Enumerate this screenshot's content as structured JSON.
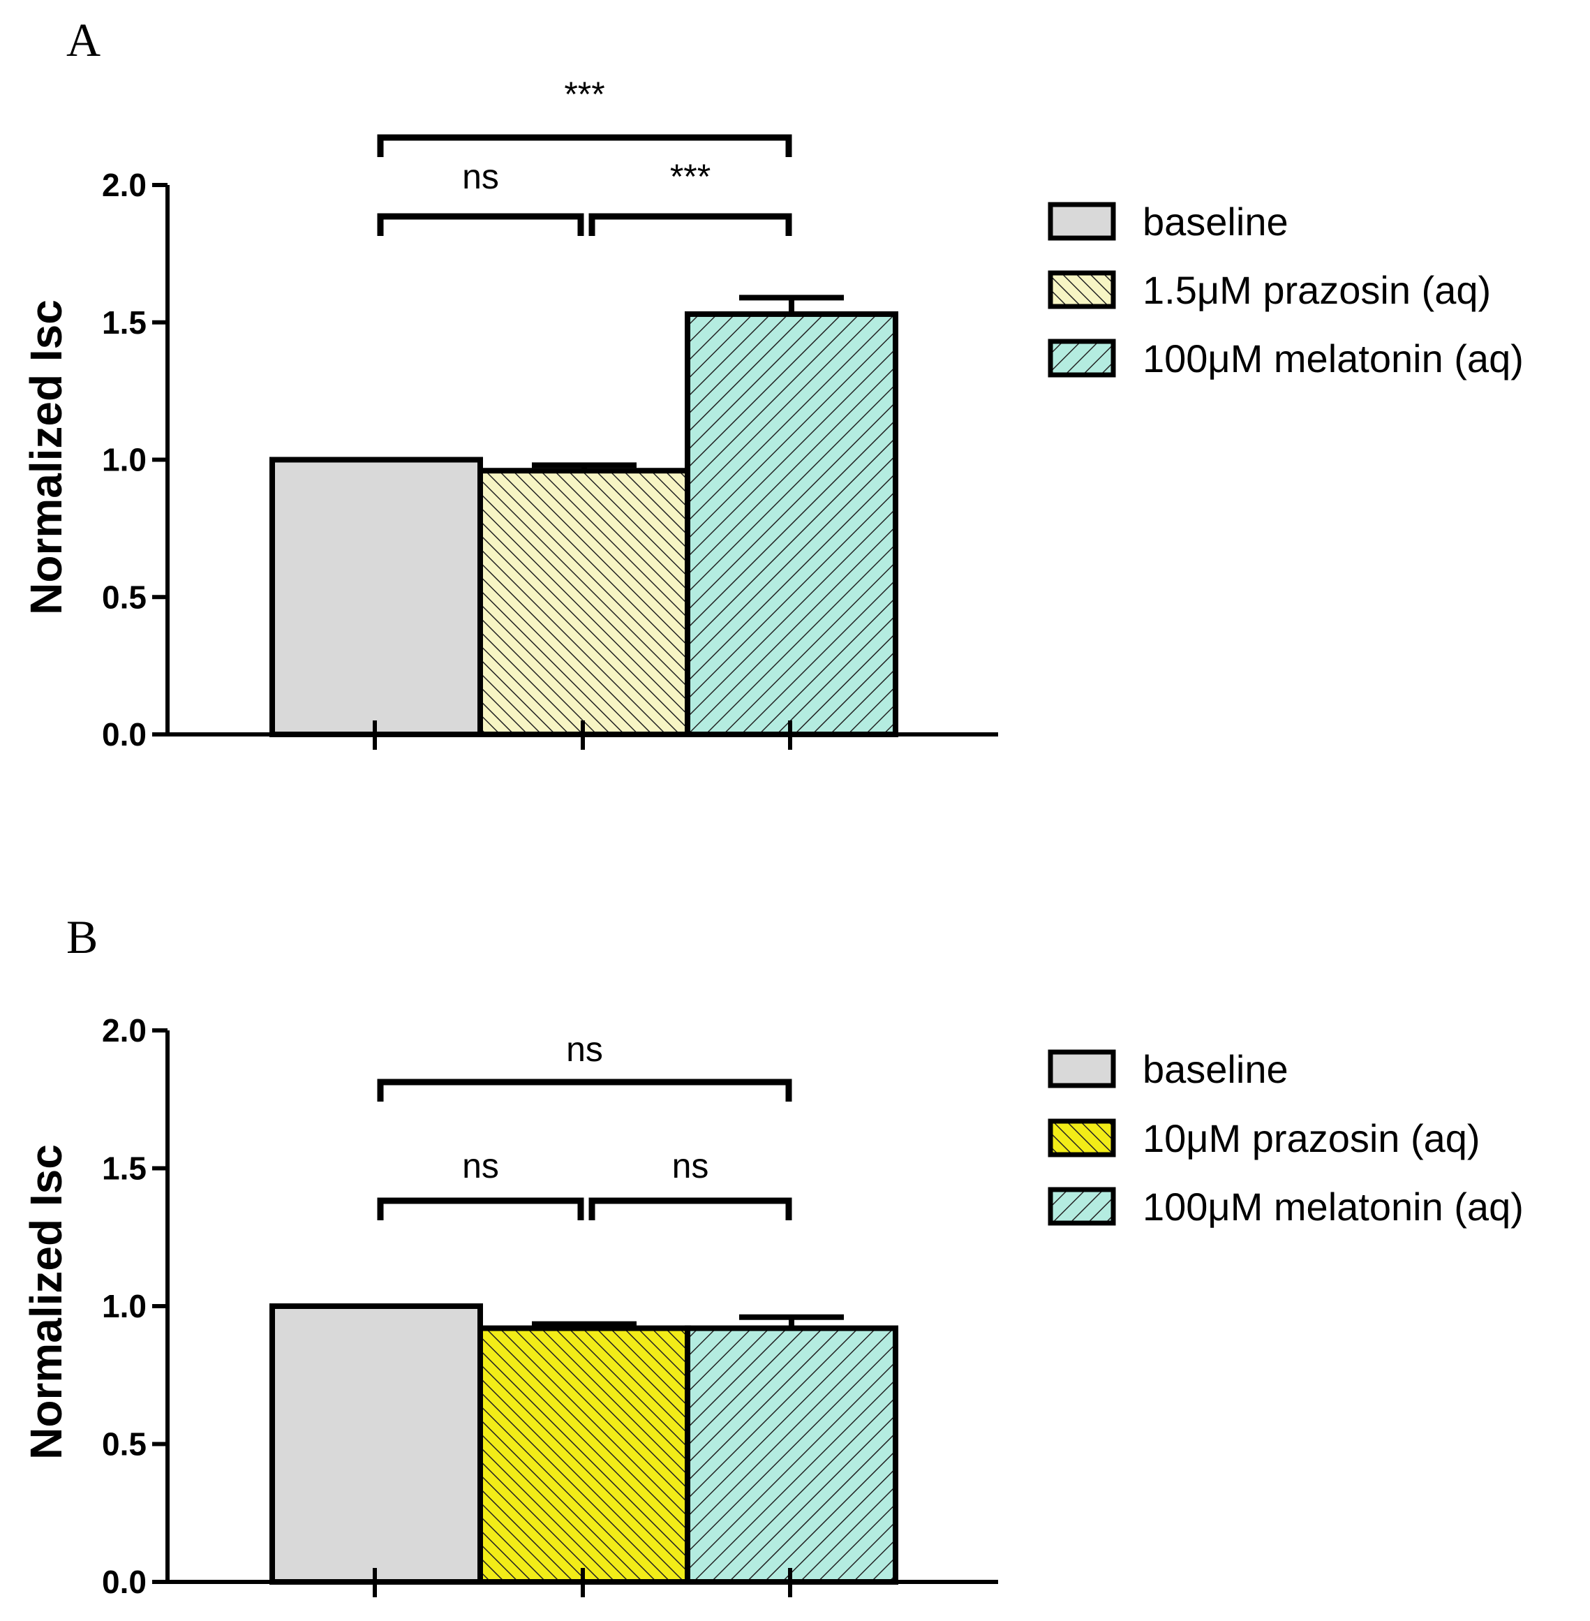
{
  "chart_data": [
    {
      "panel": "A",
      "type": "bar",
      "ylabel": "Normalized Isc",
      "xlabel": "",
      "ylim": [
        0,
        2.0
      ],
      "yticks": [
        "0.0",
        "0.5",
        "1.0",
        "1.5",
        "2.0"
      ],
      "categories": [
        "baseline",
        "1.5μM prazosin (aq)",
        "100μM melatonin (aq)"
      ],
      "values": [
        1.0,
        0.96,
        1.53
      ],
      "errors": [
        0,
        0.02,
        0.06
      ],
      "fills": [
        "#d9d9d9",
        "#f7f5c4",
        "#b4ece0"
      ],
      "hatched": [
        false,
        true,
        true
      ],
      "legend": {
        "position": "right",
        "items": [
          {
            "label": "baseline",
            "color": "#d9d9d9",
            "hatched": false
          },
          {
            "label": "1.5μM prazosin (aq)",
            "color": "#f7f5c4",
            "hatched": true
          },
          {
            "label": "100μM melatonin (aq)",
            "color": "#b4ece0",
            "hatched": true
          }
        ]
      },
      "significance": [
        {
          "from": 0,
          "to": 2,
          "label": "***"
        },
        {
          "from": 0,
          "to": 1,
          "label": "ns"
        },
        {
          "from": 1,
          "to": 2,
          "label": "***"
        }
      ]
    },
    {
      "panel": "B",
      "type": "bar",
      "ylabel": "Normalized Isc",
      "xlabel": "",
      "ylim": [
        0,
        2.0
      ],
      "yticks": [
        "0.0",
        "0.5",
        "1.0",
        "1.5",
        "2.0"
      ],
      "categories": [
        "baseline",
        "10μM prazosin (aq)",
        "100μM melatonin (aq)"
      ],
      "values": [
        1.0,
        0.92,
        0.92
      ],
      "errors": [
        0,
        0.015,
        0.04
      ],
      "fills": [
        "#d9d9d9",
        "#f2ec18",
        "#b4ece0"
      ],
      "hatched": [
        false,
        true,
        true
      ],
      "legend": {
        "position": "right",
        "items": [
          {
            "label": "baseline",
            "color": "#d9d9d9",
            "hatched": false
          },
          {
            "label": "10μM prazosin (aq)",
            "color": "#f2ec18",
            "hatched": true
          },
          {
            "label": "100μM melatonin (aq)",
            "color": "#b4ece0",
            "hatched": true
          }
        ]
      },
      "significance": [
        {
          "from": 0,
          "to": 2,
          "label": "ns"
        },
        {
          "from": 0,
          "to": 1,
          "label": "ns"
        },
        {
          "from": 1,
          "to": 2,
          "label": "ns"
        }
      ]
    }
  ]
}
